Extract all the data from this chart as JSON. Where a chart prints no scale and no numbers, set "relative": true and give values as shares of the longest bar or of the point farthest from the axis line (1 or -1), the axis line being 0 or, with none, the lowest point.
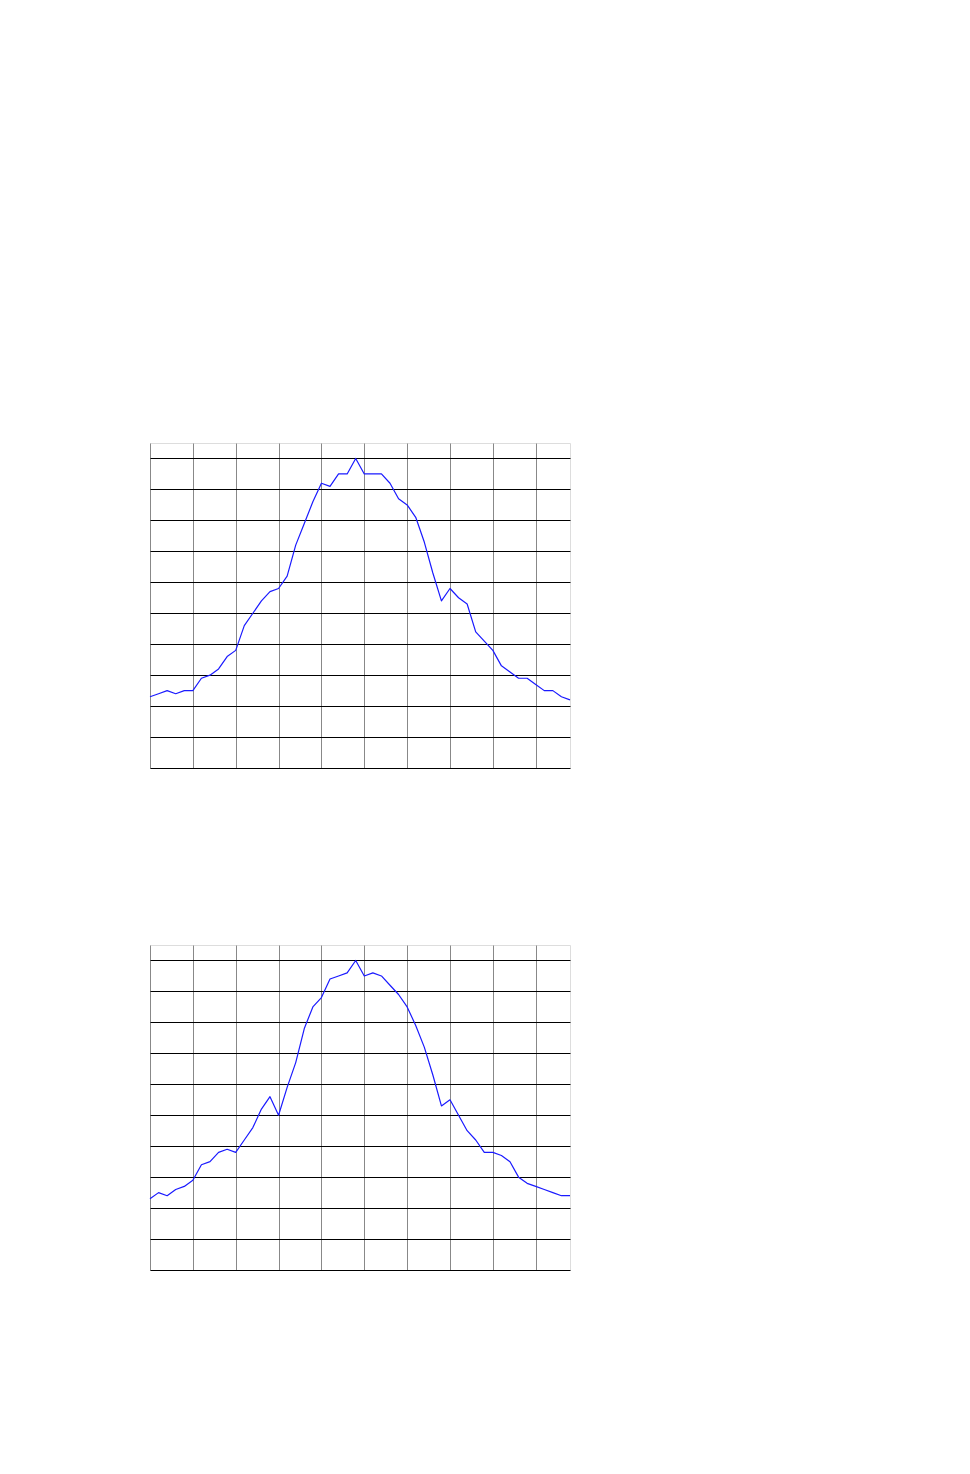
{
  "chart_data": [
    {
      "type": "line",
      "relative": true,
      "grid": true,
      "marker": "none",
      "categories": [
        null,
        null,
        null,
        null,
        null,
        null,
        null,
        null,
        null,
        null,
        null,
        null,
        null,
        null,
        null,
        null,
        null,
        null,
        null,
        null,
        null,
        null,
        null,
        null,
        null,
        null,
        null,
        null,
        null,
        null,
        null,
        null,
        null,
        null,
        null,
        null,
        null,
        null,
        null,
        null,
        null,
        null,
        null,
        null,
        null,
        null,
        null,
        null,
        null,
        null
      ],
      "series": [
        {
          "color": "#1a1aff",
          "values": [
            0.23,
            0.24,
            0.25,
            0.24,
            0.25,
            0.25,
            0.29,
            0.3,
            0.32,
            0.36,
            0.38,
            0.46,
            0.5,
            0.54,
            0.57,
            0.58,
            0.62,
            0.72,
            0.79,
            0.86,
            0.92,
            0.91,
            0.95,
            0.95,
            1.0,
            0.95,
            0.95,
            0.95,
            0.92,
            0.87,
            0.85,
            0.81,
            0.73,
            0.63,
            0.54,
            0.58,
            0.55,
            0.53,
            0.44,
            0.41,
            0.38,
            0.33,
            0.31,
            0.29,
            0.29,
            0.27,
            0.25,
            0.25,
            0.23,
            0.22
          ]
        }
      ]
    },
    {
      "type": "line",
      "relative": true,
      "grid": true,
      "marker": "none",
      "categories": [
        null,
        null,
        null,
        null,
        null,
        null,
        null,
        null,
        null,
        null,
        null,
        null,
        null,
        null,
        null,
        null,
        null,
        null,
        null,
        null,
        null,
        null,
        null,
        null,
        null,
        null,
        null,
        null,
        null,
        null,
        null,
        null,
        null,
        null,
        null,
        null,
        null,
        null,
        null,
        null,
        null,
        null,
        null,
        null,
        null,
        null,
        null,
        null,
        null,
        null
      ],
      "series": [
        {
          "color": "#1a1aff",
          "values": [
            0.23,
            0.25,
            0.24,
            0.26,
            0.27,
            0.29,
            0.34,
            0.35,
            0.38,
            0.39,
            0.38,
            0.42,
            0.46,
            0.52,
            0.56,
            0.5,
            0.59,
            0.67,
            0.78,
            0.85,
            0.88,
            0.94,
            0.95,
            0.96,
            1.0,
            0.95,
            0.96,
            0.95,
            0.92,
            0.89,
            0.85,
            0.79,
            0.72,
            0.63,
            0.53,
            0.55,
            0.5,
            0.45,
            0.42,
            0.38,
            0.38,
            0.37,
            0.35,
            0.3,
            0.28,
            0.27,
            0.26,
            0.25,
            0.24,
            0.24
          ]
        }
      ]
    }
  ]
}
